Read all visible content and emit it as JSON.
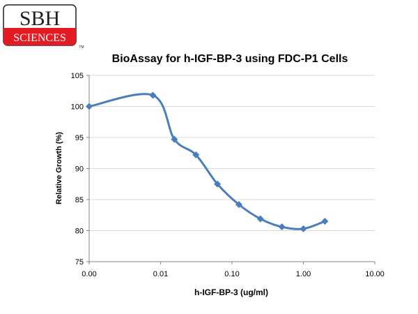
{
  "logo": {
    "line1": "SBH",
    "line2": "SCIENCES",
    "trademark": "TM"
  },
  "colors": {
    "series": "#4a7ebb",
    "axis": "#868686",
    "grid": "#d9d9d9",
    "logo_red": "#e51b24",
    "logo_dark": "#231f20"
  },
  "chart_data": {
    "type": "line",
    "title": "BioAssay for h-IGF-BP-3 using FDC-P1 Cells",
    "xlabel": "h-IGF-BP-3 (ug/ml)",
    "ylabel": "Relative Growth (%)",
    "x_scale": "log",
    "xlim": [
      0.001,
      10
    ],
    "ylim": [
      75,
      105
    ],
    "x_ticks": [
      0.001,
      0.01,
      0.1,
      1,
      10
    ],
    "x_tick_labels": [
      "0.00",
      "0.01",
      "0.10",
      "1.00",
      "10.00"
    ],
    "y_ticks": [
      75,
      80,
      85,
      90,
      95,
      100,
      105
    ],
    "y_tick_labels": [
      "75",
      "80",
      "85",
      "90",
      "95",
      "100",
      "105"
    ],
    "grid": "horizontal",
    "smooth": true,
    "marker": "diamond",
    "series": [
      {
        "x": [
          0.001,
          0.0078,
          0.0156,
          0.03125,
          0.0625,
          0.125,
          0.25,
          0.5,
          1.0,
          2.0
        ],
        "values": [
          100,
          101.8,
          94.7,
          92.2,
          87.5,
          84.2,
          81.9,
          80.6,
          80.3,
          81.5
        ]
      }
    ]
  }
}
